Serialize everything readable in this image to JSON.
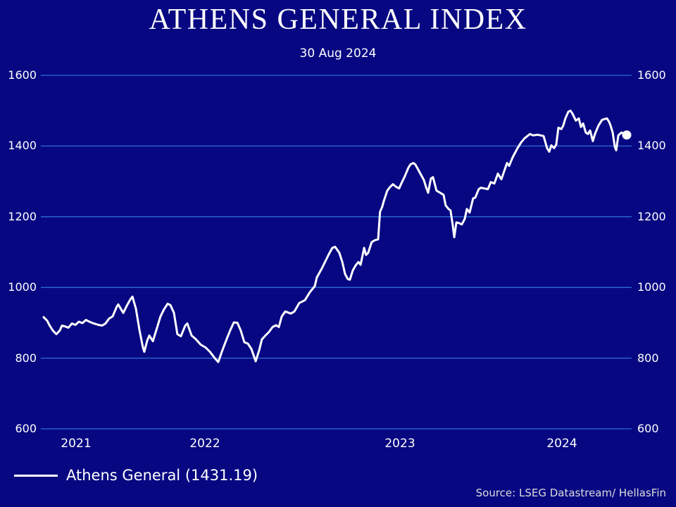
{
  "title": "ATHENS GENERAL INDEX",
  "subtitle": "30 Aug 2024",
  "legend": {
    "label": "Athens General (1431.19)"
  },
  "source": "Source: LSEG Datastream/ HellasFin",
  "colors": {
    "background": "#070782",
    "grid": "#2e6ed6",
    "line": "#ffffff",
    "text": "#ffffff",
    "source_text": "#dcdcdc"
  },
  "chart_data": {
    "type": "line",
    "title": "ATHENS GENERAL INDEX",
    "subtitle": "30 Aug 2024",
    "xlabel": "",
    "ylabel": "",
    "grid": "horizontal",
    "legend_position": "bottom-left",
    "x_ticks": [
      2021,
      2022,
      2023,
      2024
    ],
    "y_ticks": [
      600,
      800,
      1000,
      1200,
      1400,
      1600
    ],
    "xlim": [
      2021.67,
      2024.665
    ],
    "ylim": [
      600,
      1600
    ],
    "end_marker": true,
    "series": [
      {
        "name": "Athens General",
        "last_value": 1431.19,
        "points": [
          [
            2021.67,
            916
          ],
          [
            2021.688,
            906
          ],
          [
            2021.699,
            894
          ],
          [
            2021.717,
            878
          ],
          [
            2021.735,
            868
          ],
          [
            2021.753,
            878
          ],
          [
            2021.764,
            892
          ],
          [
            2021.779,
            890
          ],
          [
            2021.797,
            886
          ],
          [
            2021.815,
            898
          ],
          [
            2021.833,
            894
          ],
          [
            2021.851,
            903
          ],
          [
            2021.869,
            899
          ],
          [
            2021.887,
            908
          ],
          [
            2021.905,
            903
          ],
          [
            2021.923,
            899
          ],
          [
            2021.941,
            896
          ],
          [
            2021.952,
            894
          ],
          [
            2021.97,
            892
          ],
          [
            2021.988,
            898
          ],
          [
            2022.006,
            912
          ],
          [
            2022.024,
            918
          ],
          [
            2022.046,
            946
          ],
          [
            2022.053,
            952
          ],
          [
            2022.068,
            938
          ],
          [
            2022.079,
            928
          ],
          [
            2022.097,
            948
          ],
          [
            2022.115,
            966
          ],
          [
            2022.126,
            974
          ],
          [
            2022.144,
            940
          ],
          [
            2022.162,
            880
          ],
          [
            2022.18,
            830
          ],
          [
            2022.187,
            818
          ],
          [
            2022.202,
            850
          ],
          [
            2022.213,
            864
          ],
          [
            2022.231,
            848
          ],
          [
            2022.249,
            880
          ],
          [
            2022.27,
            918
          ],
          [
            2022.288,
            938
          ],
          [
            2022.307,
            954
          ],
          [
            2022.321,
            950
          ],
          [
            2022.339,
            928
          ],
          [
            2022.357,
            868
          ],
          [
            2022.375,
            862
          ],
          [
            2022.397,
            892
          ],
          [
            2022.408,
            898
          ],
          [
            2022.43,
            864
          ],
          [
            2022.451,
            854
          ],
          [
            2022.477,
            838
          ],
          [
            2022.502,
            830
          ],
          [
            2022.524,
            818
          ],
          [
            2022.549,
            800
          ],
          [
            2022.567,
            789
          ],
          [
            2022.585,
            818
          ],
          [
            2022.61,
            854
          ],
          [
            2022.628,
            878
          ],
          [
            2022.647,
            901
          ],
          [
            2022.665,
            900
          ],
          [
            2022.683,
            877
          ],
          [
            2022.701,
            845
          ],
          [
            2022.719,
            841
          ],
          [
            2022.737,
            826
          ],
          [
            2022.759,
            791
          ],
          [
            2022.777,
            822
          ],
          [
            2022.791,
            853
          ],
          [
            2022.809,
            864
          ],
          [
            2022.827,
            874
          ],
          [
            2022.846,
            888
          ],
          [
            2022.864,
            893
          ],
          [
            2022.878,
            888
          ],
          [
            2022.893,
            918
          ],
          [
            2022.911,
            932
          ],
          [
            2022.94,
            926
          ],
          [
            2022.958,
            932
          ],
          [
            2022.983,
            956
          ],
          [
            2023.012,
            964
          ],
          [
            2023.037,
            986
          ],
          [
            2023.063,
            1004
          ],
          [
            2023.073,
            1028
          ],
          [
            2023.099,
            1054
          ],
          [
            2023.117,
            1074
          ],
          [
            2023.135,
            1094
          ],
          [
            2023.153,
            1112
          ],
          [
            2023.167,
            1115
          ],
          [
            2023.189,
            1098
          ],
          [
            2023.204,
            1072
          ],
          [
            2023.218,
            1038
          ],
          [
            2023.232,
            1024
          ],
          [
            2023.243,
            1022
          ],
          [
            2023.258,
            1048
          ],
          [
            2023.272,
            1062
          ],
          [
            2023.287,
            1072
          ],
          [
            2023.298,
            1064
          ],
          [
            2023.316,
            1112
          ],
          [
            2023.326,
            1092
          ],
          [
            2023.337,
            1098
          ],
          [
            2023.355,
            1128
          ],
          [
            2023.373,
            1134
          ],
          [
            2023.388,
            1136
          ],
          [
            2023.398,
            1214
          ],
          [
            2023.409,
            1228
          ],
          [
            2023.417,
            1244
          ],
          [
            2023.435,
            1274
          ],
          [
            2023.446,
            1282
          ],
          [
            2023.464,
            1292
          ],
          [
            2023.482,
            1284
          ],
          [
            2023.496,
            1280
          ],
          [
            2023.507,
            1294
          ],
          [
            2023.525,
            1314
          ],
          [
            2023.543,
            1338
          ],
          [
            2023.554,
            1348
          ],
          [
            2023.569,
            1352
          ],
          [
            2023.579,
            1348
          ],
          [
            2023.605,
            1322
          ],
          [
            2023.623,
            1304
          ],
          [
            2023.634,
            1284
          ],
          [
            2023.645,
            1268
          ],
          [
            2023.659,
            1308
          ],
          [
            2023.67,
            1312
          ],
          [
            2023.688,
            1274
          ],
          [
            2023.706,
            1268
          ],
          [
            2023.724,
            1262
          ],
          [
            2023.735,
            1232
          ],
          [
            2023.75,
            1222
          ],
          [
            2023.76,
            1218
          ],
          [
            2023.771,
            1178
          ],
          [
            2023.779,
            1142
          ],
          [
            2023.79,
            1184
          ],
          [
            2023.804,
            1182
          ],
          [
            2023.818,
            1178
          ],
          [
            2023.833,
            1194
          ],
          [
            2023.844,
            1222
          ],
          [
            2023.858,
            1212
          ],
          [
            2023.876,
            1252
          ],
          [
            2023.887,
            1254
          ],
          [
            2023.905,
            1278
          ],
          [
            2023.916,
            1282
          ],
          [
            2023.934,
            1280
          ],
          [
            2023.952,
            1278
          ],
          [
            2023.967,
            1298
          ],
          [
            2023.985,
            1294
          ],
          [
            2024.003,
            1322
          ],
          [
            2024.021,
            1306
          ],
          [
            2024.039,
            1334
          ],
          [
            2024.05,
            1352
          ],
          [
            2024.061,
            1344
          ],
          [
            2024.079,
            1368
          ],
          [
            2024.104,
            1394
          ],
          [
            2024.122,
            1410
          ],
          [
            2024.14,
            1422
          ],
          [
            2024.159,
            1430
          ],
          [
            2024.169,
            1434
          ],
          [
            2024.184,
            1430
          ],
          [
            2024.206,
            1432
          ],
          [
            2024.224,
            1430
          ],
          [
            2024.238,
            1428
          ],
          [
            2024.256,
            1394
          ],
          [
            2024.267,
            1384
          ],
          [
            2024.278,
            1402
          ],
          [
            2024.292,
            1394
          ],
          [
            2024.303,
            1404
          ],
          [
            2024.314,
            1452
          ],
          [
            2024.329,
            1448
          ],
          [
            2024.339,
            1458
          ],
          [
            2024.35,
            1478
          ],
          [
            2024.365,
            1497
          ],
          [
            2024.376,
            1500
          ],
          [
            2024.386,
            1492
          ],
          [
            2024.404,
            1472
          ],
          [
            2024.419,
            1478
          ],
          [
            2024.43,
            1454
          ],
          [
            2024.441,
            1464
          ],
          [
            2024.455,
            1438
          ],
          [
            2024.466,
            1434
          ],
          [
            2024.477,
            1444
          ],
          [
            2024.491,
            1414
          ],
          [
            2024.502,
            1434
          ],
          [
            2024.52,
            1458
          ],
          [
            2024.538,
            1474
          ],
          [
            2024.549,
            1476
          ],
          [
            2024.564,
            1478
          ],
          [
            2024.575,
            1468
          ],
          [
            2024.582,
            1458
          ],
          [
            2024.593,
            1438
          ],
          [
            2024.604,
            1398
          ],
          [
            2024.611,
            1388
          ],
          [
            2024.622,
            1430
          ],
          [
            2024.637,
            1438
          ],
          [
            2024.648,
            1436
          ],
          [
            2024.665,
            1431.19
          ]
        ]
      }
    ]
  }
}
